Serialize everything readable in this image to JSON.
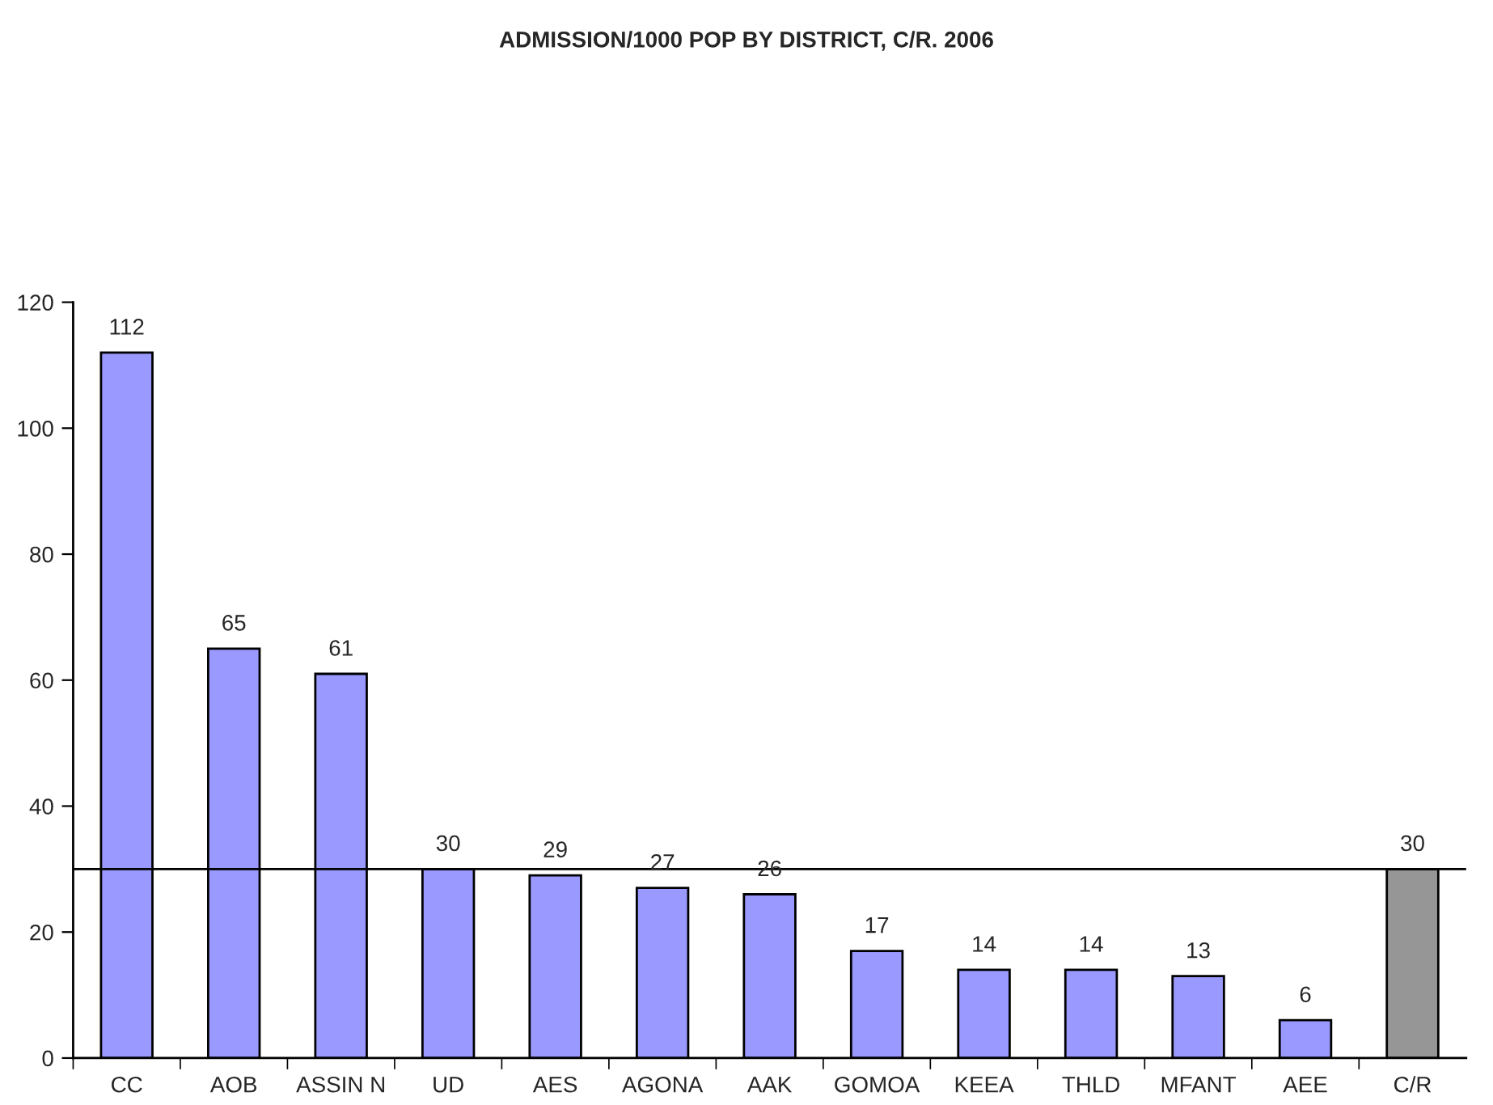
{
  "chart_data": {
    "type": "bar",
    "title": "ADMISSION/1000 POP BY DISTRICT, C/R. 2006",
    "categories": [
      "CC",
      "AOB",
      "ASSIN N",
      "UD",
      "AES",
      "AGONA",
      "AAK",
      "GOMOA",
      "KEEA",
      "THLD",
      "MFANT",
      "AEE",
      "C/R"
    ],
    "values": [
      112,
      65,
      61,
      30,
      29,
      27,
      26,
      17,
      14,
      14,
      13,
      6,
      30
    ],
    "colors": [
      "#9999ff",
      "#9999ff",
      "#9999ff",
      "#9999ff",
      "#9999ff",
      "#9999ff",
      "#9999ff",
      "#9999ff",
      "#9999ff",
      "#9999ff",
      "#9999ff",
      "#9999ff",
      "#969696"
    ],
    "ylim": [
      0,
      120
    ],
    "yticks": [
      0,
      20,
      40,
      60,
      80,
      100,
      120
    ],
    "ref_lines": [
      {
        "axis": "y",
        "value": 30,
        "color": "#000000",
        "line_style": "solid"
      }
    ],
    "data_labels": true,
    "grid": false,
    "legend": false
  }
}
